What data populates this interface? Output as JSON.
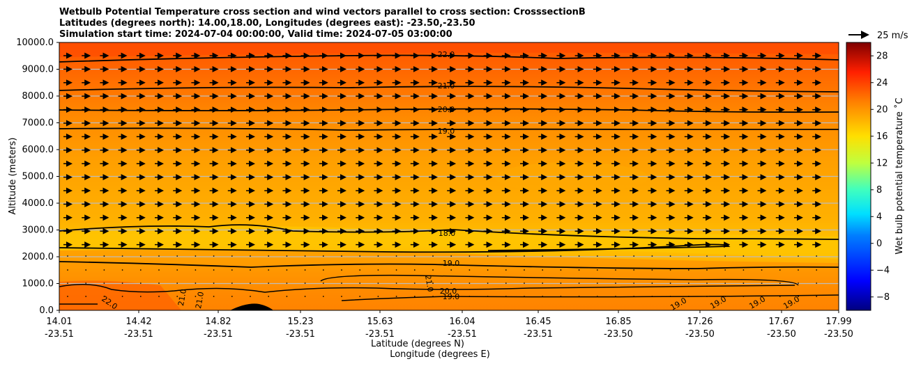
{
  "chart_data": {
    "type": "contourf",
    "title_lines": [
      "Wetbulb Potential Temperature cross section and wind vectors parallel to cross section: CrosssectionB",
      "Latitudes (degrees north): 14.00,18.00, Longitudes (degrees east): -23.50,-23.50",
      "Simulation start time: 2024-07-04 00:00:00, Valid time: 2024-07-05 03:00:00"
    ],
    "ylabel": "Altitude (meters)",
    "xlabel_lat": "Latitude (degrees N)",
    "xlabel_lon": "Longitude (degrees E)",
    "ylim": [
      0,
      10000
    ],
    "yticks": [
      "0.0",
      "1000.0",
      "2000.0",
      "3000.0",
      "4000.0",
      "5000.0",
      "6000.0",
      "7000.0",
      "8000.0",
      "9000.0",
      "10000.0"
    ],
    "xticks": [
      {
        "lat": "14.01",
        "lon": "-23.51"
      },
      {
        "lat": "14.42",
        "lon": "-23.51"
      },
      {
        "lat": "14.82",
        "lon": "-23.51"
      },
      {
        "lat": "15.23",
        "lon": "-23.51"
      },
      {
        "lat": "15.63",
        "lon": "-23.51"
      },
      {
        "lat": "16.04",
        "lon": "-23.51"
      },
      {
        "lat": "16.45",
        "lon": "-23.51"
      },
      {
        "lat": "16.85",
        "lon": "-23.50"
      },
      {
        "lat": "17.26",
        "lon": "-23.50"
      },
      {
        "lat": "17.67",
        "lon": "-23.50"
      },
      {
        "lat": "17.99",
        "lon": "-23.50"
      }
    ],
    "colorbar": {
      "label": "Wet bulb potential temperature ˚C",
      "range": [
        -10,
        30
      ],
      "ticks": [
        "-8",
        "-4",
        "0",
        "4",
        "8",
        "12",
        "16",
        "20",
        "24",
        "28"
      ]
    },
    "quiver_key": "25 m/s",
    "contours": [
      {
        "level": 22.0,
        "label": "22.0",
        "altitude_m": 9400
      },
      {
        "level": 21.0,
        "label": "21.0",
        "altitude_m": 8300
      },
      {
        "level": 20.0,
        "label": "20.0",
        "altitude_m": 7450
      },
      {
        "level": 19.0,
        "label": "19.0",
        "altitude_m": 6750
      },
      {
        "level": 18.0,
        "label": "18.0",
        "altitude_m": 2900
      },
      {
        "level": 19.0,
        "label": "19.0",
        "altitude_m": 1750
      },
      {
        "level": 20.0,
        "label": "20.0",
        "altitude_m": 700
      },
      {
        "level": 19.0,
        "label": "19.0",
        "altitude_m": 500
      }
    ],
    "low_level_labels": [
      "22.0",
      "21.0",
      "21.0",
      "21.0",
      "19.0",
      "19.0",
      "19.0",
      "19.0"
    ],
    "colors": {
      "warm": "#ff5a00",
      "mid": "#ff9a00",
      "cool": "#ffc800",
      "terrain": "#000000"
    }
  }
}
